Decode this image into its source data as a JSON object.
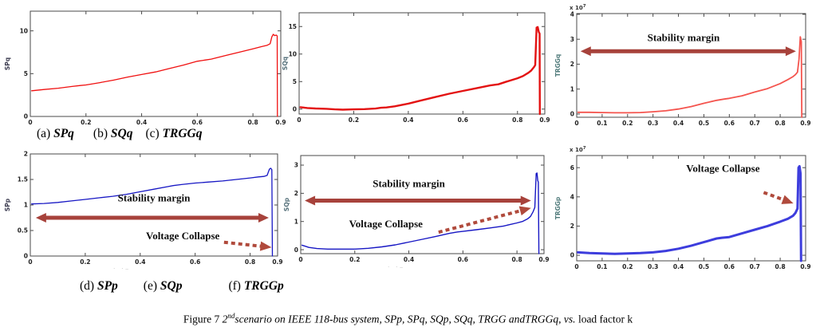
{
  "figure": {
    "colors": {
      "axis": "#4a4a4a",
      "curve_red": "#f01010",
      "curve_red_thick": "#e31212",
      "curve_salmon": "#f4544e",
      "curve_blue": "#1717c4",
      "curve_blue_thick": "#3d3ddd",
      "arrow": "#a7423b",
      "arrow_dotted": "#b04a3c"
    },
    "captions": {
      "row1": [
        {
          "prefix": "(a)",
          "name": "SPq"
        },
        {
          "prefix": "(b)",
          "name": "SQq"
        },
        {
          "prefix": "(c)",
          "name": "TRGGq"
        }
      ],
      "row2": [
        {
          "prefix": "(d)",
          "name": "SPp"
        },
        {
          "prefix": "(e)",
          "name": "SQp"
        },
        {
          "prefix": "(f)",
          "name": "TRGGp"
        }
      ]
    },
    "figure_caption": {
      "prefix": "Figure 7 ",
      "num": "2",
      "sup": "nd",
      "italic": "scenario on IEEE 118-bus system, SPp, SPq, SQp, SQq, TRGG andTRGGq, vs.",
      "suffix": " load factor k"
    },
    "artifacts": [
      {
        "text": "· ·–"
      },
      {
        "text": "· ·–"
      }
    ]
  },
  "chart_data": [
    {
      "id": "SPq",
      "type": "line",
      "title": "",
      "xlabel": "",
      "ylabel": "SPq",
      "ylabel_color": "#3c3c50",
      "xlim": [
        0,
        0.9
      ],
      "ylim": [
        0,
        12.3
      ],
      "xtick_vals": [
        0,
        0.2,
        0.4,
        0.6,
        0.8,
        0.9
      ],
      "xtick_labels": [
        "0",
        "0.2",
        "0.4",
        "0.6",
        "0.8",
        "0.9"
      ],
      "ytick_vals": [
        0,
        5,
        10
      ],
      "ytick_labels": [
        "0",
        "5",
        "10"
      ],
      "series": [
        {
          "name": "SPq",
          "color": "#f01010",
          "width": 1.3,
          "points": [
            [
              0.005,
              3.0
            ],
            [
              0.05,
              3.15
            ],
            [
              0.1,
              3.3
            ],
            [
              0.15,
              3.5
            ],
            [
              0.18,
              3.62
            ],
            [
              0.2,
              3.68
            ],
            [
              0.25,
              3.95
            ],
            [
              0.3,
              4.25
            ],
            [
              0.35,
              4.6
            ],
            [
              0.4,
              4.9
            ],
            [
              0.45,
              5.2
            ],
            [
              0.5,
              5.6
            ],
            [
              0.55,
              6.0
            ],
            [
              0.6,
              6.45
            ],
            [
              0.63,
              6.6
            ],
            [
              0.65,
              6.7
            ],
            [
              0.7,
              7.1
            ],
            [
              0.75,
              7.5
            ],
            [
              0.8,
              7.9
            ],
            [
              0.83,
              8.15
            ],
            [
              0.85,
              8.3
            ],
            [
              0.862,
              8.5
            ],
            [
              0.868,
              9.3
            ],
            [
              0.873,
              9.6
            ],
            [
              0.878,
              9.45
            ],
            [
              0.884,
              9.5
            ],
            [
              0.887,
              9.4
            ],
            [
              0.888,
              0
            ]
          ]
        }
      ],
      "annotations": []
    },
    {
      "id": "SQq",
      "type": "line",
      "title": "",
      "xlabel": "",
      "ylabel": "SQq",
      "ylabel_color": "#55707a",
      "xlim": [
        0,
        0.9
      ],
      "ylim": [
        -0.9,
        17.5
      ],
      "xtick_vals": [
        0,
        0.2,
        0.4,
        0.6,
        0.8,
        0.9
      ],
      "xtick_labels": [
        "0",
        "0.2",
        "0.4",
        "0.6",
        "0.8",
        "0.9"
      ],
      "ytick_vals": [
        0,
        5,
        10,
        15
      ],
      "ytick_labels": [
        "0",
        "5",
        "10",
        "15"
      ],
      "series": [
        {
          "name": "SQq",
          "color": "#e31212",
          "width": 2.4,
          "points": [
            [
              0.005,
              0.35
            ],
            [
              0.03,
              0.2
            ],
            [
              0.06,
              0.12
            ],
            [
              0.1,
              0.05
            ],
            [
              0.13,
              -0.05
            ],
            [
              0.16,
              -0.1
            ],
            [
              0.2,
              -0.05
            ],
            [
              0.24,
              0.0
            ],
            [
              0.28,
              0.1
            ],
            [
              0.3,
              0.25
            ],
            [
              0.32,
              0.3
            ],
            [
              0.35,
              0.5
            ],
            [
              0.4,
              1.0
            ],
            [
              0.45,
              1.6
            ],
            [
              0.5,
              2.2
            ],
            [
              0.55,
              2.8
            ],
            [
              0.6,
              3.3
            ],
            [
              0.65,
              3.8
            ],
            [
              0.7,
              4.3
            ],
            [
              0.73,
              4.5
            ],
            [
              0.76,
              5.0
            ],
            [
              0.8,
              5.6
            ],
            [
              0.82,
              6.0
            ],
            [
              0.84,
              6.6
            ],
            [
              0.85,
              7.0
            ],
            [
              0.86,
              7.6
            ],
            [
              0.865,
              8.0
            ],
            [
              0.87,
              14.8
            ],
            [
              0.874,
              14.9
            ],
            [
              0.878,
              14.0
            ],
            [
              0.881,
              13.7
            ],
            [
              0.882,
              -0.9
            ]
          ]
        }
      ],
      "annotations": []
    },
    {
      "id": "TRGGq",
      "type": "line",
      "title": "",
      "xlabel": "",
      "ylabel": "TRGGq",
      "ylabel_color": "#4f7a7a",
      "exponent": "x 10",
      "exp_sup": "7",
      "xlim": [
        0,
        0.9
      ],
      "ylim": [
        -0.13,
        4.03
      ],
      "xtick_vals": [
        0,
        0.1,
        0.2,
        0.3,
        0.4,
        0.5,
        0.6,
        0.7,
        0.8,
        0.9
      ],
      "xtick_labels": [
        "0",
        "0.1",
        "0.2",
        "0.3",
        "0.4",
        "0.5",
        "0.6",
        "0.7",
        "0.8",
        "0.9"
      ],
      "ytick_vals": [
        0,
        1,
        2,
        3,
        4
      ],
      "ytick_labels": [
        "0",
        "1",
        "2",
        "3",
        "4"
      ],
      "series": [
        {
          "name": "TRGGq",
          "color": "#f4544e",
          "width": 1.8,
          "points": [
            [
              0.005,
              0.07
            ],
            [
              0.05,
              0.07
            ],
            [
              0.1,
              0.06
            ],
            [
              0.15,
              0.05
            ],
            [
              0.2,
              0.05
            ],
            [
              0.25,
              0.06
            ],
            [
              0.3,
              0.09
            ],
            [
              0.35,
              0.13
            ],
            [
              0.4,
              0.2
            ],
            [
              0.45,
              0.3
            ],
            [
              0.5,
              0.43
            ],
            [
              0.55,
              0.55
            ],
            [
              0.58,
              0.6
            ],
            [
              0.6,
              0.63
            ],
            [
              0.65,
              0.73
            ],
            [
              0.7,
              0.88
            ],
            [
              0.75,
              1.02
            ],
            [
              0.8,
              1.22
            ],
            [
              0.83,
              1.38
            ],
            [
              0.85,
              1.5
            ],
            [
              0.86,
              1.58
            ],
            [
              0.868,
              1.68
            ],
            [
              0.874,
              2.2
            ],
            [
              0.879,
              3.1
            ],
            [
              0.883,
              2.9
            ],
            [
              0.885,
              -0.13
            ]
          ]
        }
      ],
      "annotations": [
        {
          "type": "label",
          "x": 0.42,
          "y": 2.92,
          "text": "Stability margin"
        },
        {
          "type": "dblarrow",
          "x1": 0.015,
          "x2": 0.862,
          "y": 2.52
        }
      ]
    },
    {
      "id": "SPp",
      "type": "line",
      "title": "",
      "xlabel": "",
      "ylabel": "SPp",
      "ylabel_color": "#3c3c50",
      "xlim": [
        0,
        0.9
      ],
      "ylim": [
        0,
        2.0
      ],
      "xtick_vals": [
        0,
        0.2,
        0.4,
        0.6,
        0.8,
        0.9
      ],
      "xtick_labels": [
        "0",
        "0.2",
        "0.4",
        "0.6",
        "0.8",
        "0.9"
      ],
      "ytick_vals": [
        0,
        0.5,
        1,
        1.5,
        2
      ],
      "ytick_labels": [
        "0",
        "0.5",
        "1",
        "1.5",
        "2"
      ],
      "series": [
        {
          "name": "SPp",
          "color": "#1717c4",
          "width": 1.3,
          "points": [
            [
              0.005,
              1.02
            ],
            [
              0.05,
              1.03
            ],
            [
              0.1,
              1.05
            ],
            [
              0.15,
              1.08
            ],
            [
              0.2,
              1.11
            ],
            [
              0.25,
              1.14
            ],
            [
              0.3,
              1.17
            ],
            [
              0.35,
              1.21
            ],
            [
              0.4,
              1.26
            ],
            [
              0.45,
              1.31
            ],
            [
              0.5,
              1.36
            ],
            [
              0.52,
              1.38
            ],
            [
              0.55,
              1.4
            ],
            [
              0.6,
              1.43
            ],
            [
              0.65,
              1.45
            ],
            [
              0.7,
              1.47
            ],
            [
              0.75,
              1.5
            ],
            [
              0.8,
              1.53
            ],
            [
              0.83,
              1.55
            ],
            [
              0.85,
              1.56
            ],
            [
              0.862,
              1.58
            ],
            [
              0.87,
              1.7
            ],
            [
              0.875,
              1.72
            ],
            [
              0.879,
              1.69
            ],
            [
              0.881,
              0
            ]
          ]
        }
      ],
      "annotations": [
        {
          "type": "label",
          "x": 0.45,
          "y": 1.07,
          "text": "Stability margin"
        },
        {
          "type": "dblarrow",
          "x1": 0.02,
          "x2": 0.868,
          "y": 0.75
        },
        {
          "type": "label",
          "x": 0.555,
          "y": 0.33,
          "text": "Voltage Collapse"
        },
        {
          "type": "dotarrow",
          "x1": 0.705,
          "y1": 0.27,
          "x2": 0.878,
          "y2": 0.17
        }
      ]
    },
    {
      "id": "SQp",
      "type": "line",
      "title": "",
      "xlabel": "",
      "ylabel": "SQp",
      "ylabel_color": "#55707a",
      "xlim": [
        0,
        0.9
      ],
      "ylim": [
        -0.14,
        3.34
      ],
      "xtick_vals": [
        0,
        0.2,
        0.4,
        0.6,
        0.8,
        0.9
      ],
      "xtick_labels": [
        "0",
        "0.2",
        "0.4",
        "0.6",
        "0.8",
        "0.9"
      ],
      "ytick_vals": [
        0,
        1,
        2,
        3
      ],
      "ytick_labels": [
        "0",
        "1",
        "2",
        "3"
      ],
      "series": [
        {
          "name": "SQp",
          "color": "#1717c4",
          "width": 1.4,
          "points": [
            [
              0.005,
              0.16
            ],
            [
              0.03,
              0.08
            ],
            [
              0.06,
              0.04
            ],
            [
              0.1,
              0.02
            ],
            [
              0.15,
              0.02
            ],
            [
              0.2,
              0.02
            ],
            [
              0.25,
              0.05
            ],
            [
              0.3,
              0.1
            ],
            [
              0.35,
              0.17
            ],
            [
              0.4,
              0.27
            ],
            [
              0.45,
              0.37
            ],
            [
              0.5,
              0.47
            ],
            [
              0.55,
              0.58
            ],
            [
              0.58,
              0.63
            ],
            [
              0.6,
              0.65
            ],
            [
              0.65,
              0.71
            ],
            [
              0.7,
              0.77
            ],
            [
              0.75,
              0.84
            ],
            [
              0.8,
              0.95
            ],
            [
              0.82,
              1.0
            ],
            [
              0.84,
              1.1
            ],
            [
              0.85,
              1.18
            ],
            [
              0.86,
              1.35
            ],
            [
              0.866,
              1.5
            ],
            [
              0.871,
              2.7
            ],
            [
              0.874,
              2.72
            ],
            [
              0.877,
              2.45
            ],
            [
              0.879,
              2.4
            ],
            [
              0.881,
              -0.14
            ]
          ]
        }
      ],
      "annotations": [
        {
          "type": "label",
          "x": 0.4,
          "y": 2.22,
          "text": "Stability margin"
        },
        {
          "type": "dblarrow",
          "x1": 0.015,
          "x2": 0.852,
          "y": 1.74
        },
        {
          "type": "label",
          "x": 0.315,
          "y": 0.8,
          "text": "Voltage Collapse"
        },
        {
          "type": "dotarrow",
          "x1": 0.51,
          "y1": 0.62,
          "x2": 0.852,
          "y2": 1.48
        }
      ]
    },
    {
      "id": "TRGGp",
      "type": "line",
      "title": "",
      "xlabel": "",
      "ylabel": "TRGGp",
      "ylabel_color": "#4f7a7a",
      "exponent": "x 10",
      "exp_sup": "7",
      "xlim": [
        0,
        0.9
      ],
      "ylim": [
        -0.38,
        6.83
      ],
      "xtick_vals": [
        0,
        0.1,
        0.2,
        0.3,
        0.4,
        0.5,
        0.6,
        0.7,
        0.8,
        0.9
      ],
      "xtick_labels": [
        "0",
        "0.1",
        "0.2",
        "0.3",
        "0.4",
        "0.5",
        "0.6",
        "0.7",
        "0.8",
        "0.9"
      ],
      "ytick_vals": [
        0,
        2,
        4,
        6
      ],
      "ytick_labels": [
        "0",
        "2",
        "4",
        "6"
      ],
      "series": [
        {
          "name": "TRGGp",
          "color": "#3d3ddd",
          "width": 3,
          "points": [
            [
              0.005,
              0.2
            ],
            [
              0.05,
              0.15
            ],
            [
              0.1,
              0.12
            ],
            [
              0.15,
              0.1
            ],
            [
              0.2,
              0.12
            ],
            [
              0.25,
              0.15
            ],
            [
              0.3,
              0.2
            ],
            [
              0.35,
              0.3
            ],
            [
              0.4,
              0.45
            ],
            [
              0.45,
              0.65
            ],
            [
              0.5,
              0.9
            ],
            [
              0.55,
              1.15
            ],
            [
              0.57,
              1.2
            ],
            [
              0.6,
              1.25
            ],
            [
              0.65,
              1.5
            ],
            [
              0.7,
              1.75
            ],
            [
              0.75,
              2.0
            ],
            [
              0.8,
              2.3
            ],
            [
              0.83,
              2.5
            ],
            [
              0.85,
              2.7
            ],
            [
              0.86,
              2.9
            ],
            [
              0.868,
              3.2
            ],
            [
              0.872,
              6.0
            ],
            [
              0.876,
              6.1
            ],
            [
              0.88,
              5.6
            ],
            [
              0.882,
              -0.38
            ]
          ]
        }
      ],
      "annotations": [
        {
          "type": "label",
          "x": 0.575,
          "y": 5.72,
          "text": "Voltage Collapse"
        },
        {
          "type": "dotarrow",
          "x1": 0.735,
          "y1": 4.3,
          "x2": 0.852,
          "y2": 3.55
        }
      ]
    }
  ]
}
